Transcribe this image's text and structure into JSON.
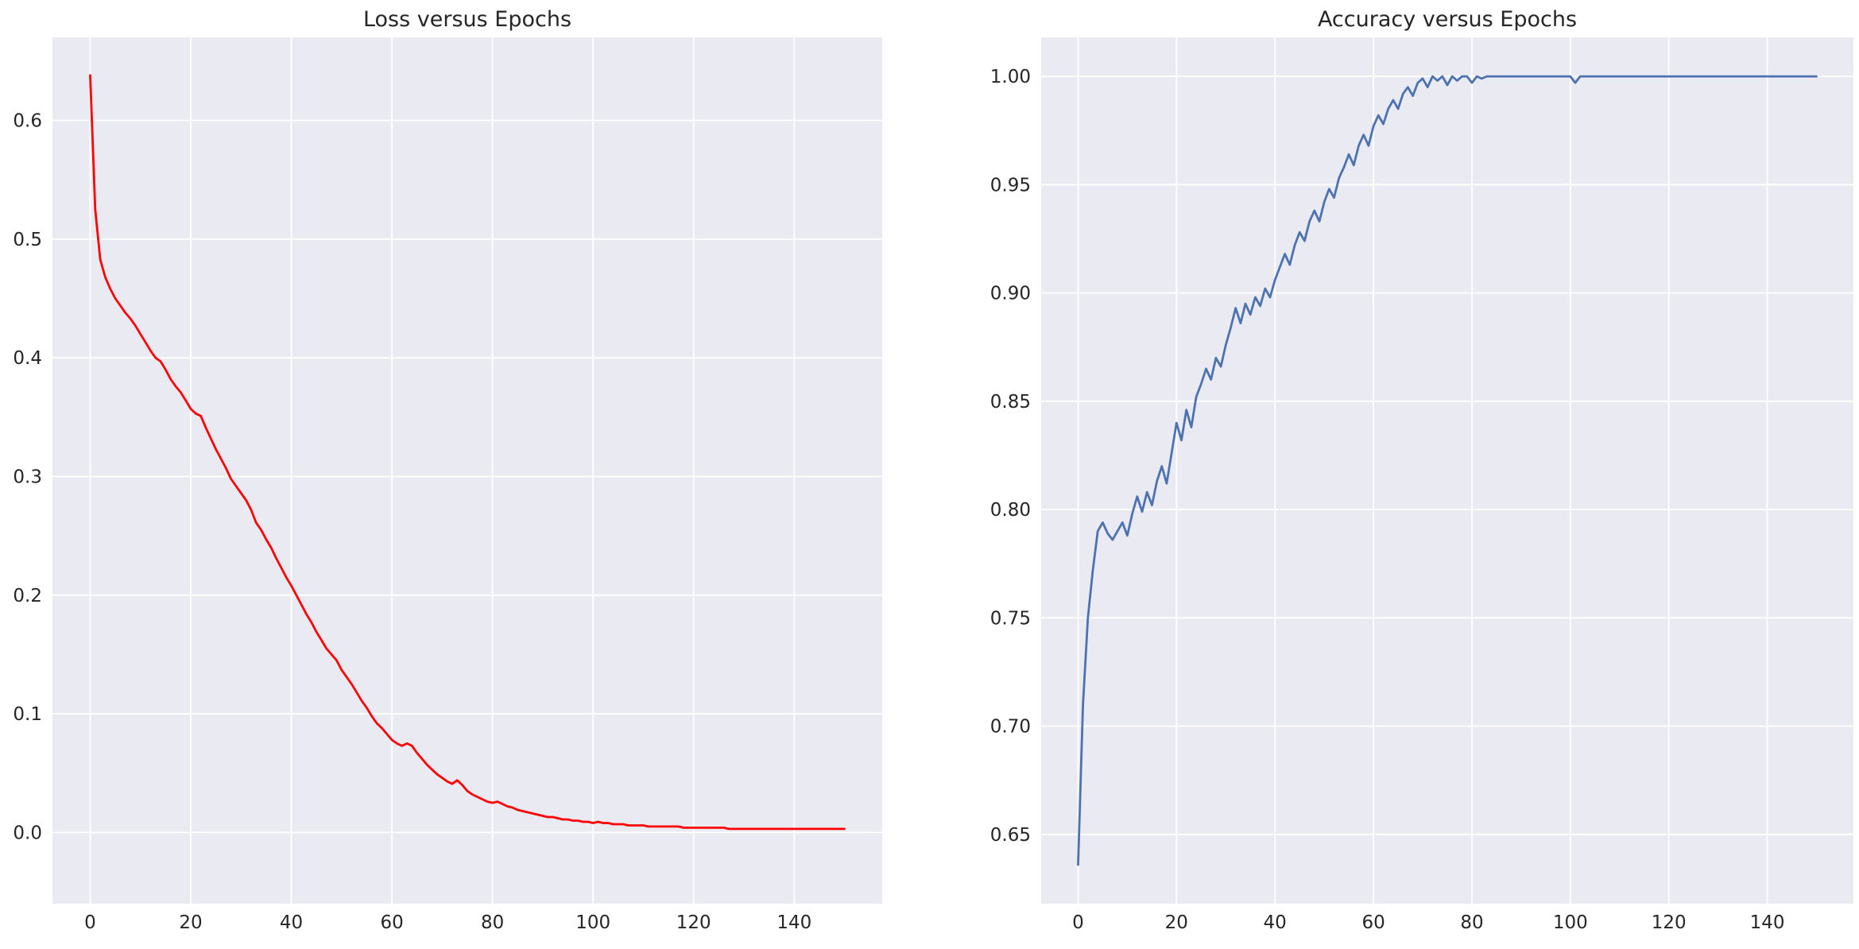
{
  "figure": {
    "background": "#ffffff"
  },
  "chart_data": [
    {
      "type": "line",
      "title": "Loss versus Epochs",
      "series_name": "loss",
      "line_color": "#ff0000",
      "plot_bg": "#eaeaf2",
      "grid_color": "#ffffff",
      "text_color": "#262626",
      "xlabel": "",
      "ylabel": "",
      "grid": true,
      "legend": false,
      "x_start": 0,
      "x_step": 1,
      "xlim": [
        -7.5,
        157.5
      ],
      "ylim": [
        -0.06,
        0.67
      ],
      "xticks": [
        0,
        20,
        40,
        60,
        80,
        100,
        120,
        140
      ],
      "yticks": [
        0.0,
        0.1,
        0.2,
        0.3,
        0.4,
        0.5,
        0.6
      ],
      "ytick_decimals": 1,
      "values": [
        0.638,
        0.525,
        0.483,
        0.468,
        0.458,
        0.45,
        0.444,
        0.438,
        0.433,
        0.427,
        0.42,
        0.413,
        0.406,
        0.4,
        0.397,
        0.39,
        0.382,
        0.376,
        0.371,
        0.364,
        0.357,
        0.353,
        0.351,
        0.341,
        0.332,
        0.323,
        0.315,
        0.307,
        0.298,
        0.292,
        0.286,
        0.28,
        0.272,
        0.261,
        0.255,
        0.247,
        0.24,
        0.231,
        0.223,
        0.215,
        0.208,
        0.2,
        0.192,
        0.184,
        0.177,
        0.169,
        0.162,
        0.155,
        0.15,
        0.145,
        0.137,
        0.131,
        0.125,
        0.118,
        0.111,
        0.105,
        0.098,
        0.092,
        0.088,
        0.083,
        0.078,
        0.075,
        0.073,
        0.075,
        0.073,
        0.067,
        0.062,
        0.057,
        0.053,
        0.049,
        0.046,
        0.043,
        0.041,
        0.044,
        0.04,
        0.035,
        0.032,
        0.03,
        0.028,
        0.026,
        0.025,
        0.026,
        0.024,
        0.022,
        0.021,
        0.019,
        0.018,
        0.017,
        0.016,
        0.015,
        0.014,
        0.013,
        0.013,
        0.012,
        0.011,
        0.011,
        0.01,
        0.01,
        0.009,
        0.009,
        0.008,
        0.009,
        0.008,
        0.008,
        0.007,
        0.007,
        0.007,
        0.006,
        0.006,
        0.006,
        0.006,
        0.005,
        0.005,
        0.005,
        0.005,
        0.005,
        0.005,
        0.005,
        0.004,
        0.004,
        0.004,
        0.004,
        0.004,
        0.004,
        0.004,
        0.004,
        0.004,
        0.003,
        0.003,
        0.003,
        0.003,
        0.003,
        0.003,
        0.003,
        0.003,
        0.003,
        0.003,
        0.003,
        0.003,
        0.003,
        0.003,
        0.003,
        0.003,
        0.003,
        0.003,
        0.003,
        0.003,
        0.003,
        0.003,
        0.003,
        0.003
      ]
    },
    {
      "type": "line",
      "title": "Accuracy versus Epochs",
      "series_name": "accuracy",
      "line_color": "#4c72b0",
      "plot_bg": "#eaeaf2",
      "grid_color": "#ffffff",
      "text_color": "#262626",
      "xlabel": "",
      "ylabel": "",
      "grid": true,
      "legend": false,
      "x_start": 0,
      "x_step": 1,
      "xlim": [
        -7.5,
        157.5
      ],
      "ylim": [
        0.618,
        1.018
      ],
      "xticks": [
        0,
        20,
        40,
        60,
        80,
        100,
        120,
        140
      ],
      "yticks": [
        0.65,
        0.7,
        0.75,
        0.8,
        0.85,
        0.9,
        0.95,
        1.0
      ],
      "ytick_decimals": 2,
      "values": [
        0.636,
        0.71,
        0.75,
        0.772,
        0.79,
        0.794,
        0.789,
        0.786,
        0.79,
        0.794,
        0.788,
        0.798,
        0.806,
        0.799,
        0.808,
        0.802,
        0.813,
        0.82,
        0.812,
        0.826,
        0.84,
        0.832,
        0.846,
        0.838,
        0.852,
        0.858,
        0.865,
        0.86,
        0.87,
        0.866,
        0.876,
        0.884,
        0.893,
        0.886,
        0.895,
        0.89,
        0.898,
        0.894,
        0.902,
        0.898,
        0.906,
        0.912,
        0.918,
        0.913,
        0.922,
        0.928,
        0.924,
        0.933,
        0.938,
        0.933,
        0.942,
        0.948,
        0.944,
        0.953,
        0.958,
        0.964,
        0.959,
        0.968,
        0.973,
        0.968,
        0.977,
        0.982,
        0.978,
        0.985,
        0.989,
        0.985,
        0.992,
        0.995,
        0.991,
        0.997,
        0.999,
        0.995,
        1.0,
        0.998,
        1.0,
        0.996,
        1.0,
        0.998,
        1.0,
        1.0,
        0.997,
        1.0,
        0.999,
        1.0,
        1.0,
        1.0,
        1.0,
        1.0,
        1.0,
        1.0,
        1.0,
        1.0,
        1.0,
        1.0,
        1.0,
        1.0,
        1.0,
        1.0,
        1.0,
        1.0,
        1.0,
        0.997,
        1.0,
        1.0,
        1.0,
        1.0,
        1.0,
        1.0,
        1.0,
        1.0,
        1.0,
        1.0,
        1.0,
        1.0,
        1.0,
        1.0,
        1.0,
        1.0,
        1.0,
        1.0,
        1.0,
        1.0,
        1.0,
        1.0,
        1.0,
        1.0,
        1.0,
        1.0,
        1.0,
        1.0,
        1.0,
        1.0,
        1.0,
        1.0,
        1.0,
        1.0,
        1.0,
        1.0,
        1.0,
        1.0,
        1.0,
        1.0,
        1.0,
        1.0,
        1.0,
        1.0,
        1.0,
        1.0,
        1.0,
        1.0,
        1.0
      ]
    }
  ]
}
